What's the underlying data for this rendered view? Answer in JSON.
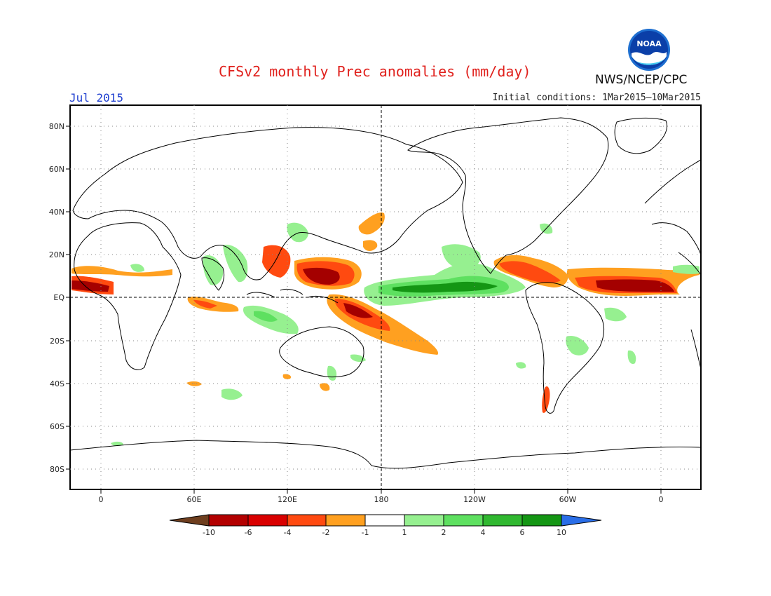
{
  "header": {
    "title": "CFSv2 monthly Prec anomalies (mm/day)",
    "month": "Jul 2015",
    "initial_conditions": "Initial conditions: 1Mar2015–10Mar2015",
    "agency": "NWS/NCEP/CPC",
    "logo_text": "NOAA"
  },
  "map": {
    "lat_labels": [
      "80N",
      "60N",
      "40N",
      "20N",
      "EQ",
      "20S",
      "40S",
      "60S",
      "80S"
    ],
    "lon_labels": [
      "0",
      "60E",
      "120E",
      "180",
      "120W",
      "60W",
      "0"
    ]
  },
  "colorbar": {
    "labels": [
      "-10",
      "-6",
      "-4",
      "-2",
      "-1",
      "1",
      "2",
      "4",
      "6",
      "10"
    ],
    "colors": {
      "below_min": "#6e3e1e",
      "bins": [
        "#b30000",
        "#d90000",
        "#ff4a10",
        "#ffa020",
        "#ffffff",
        "#96f090",
        "#5ee060",
        "#30b830",
        "#149614"
      ],
      "above_max": "#2a6ee8"
    }
  },
  "palette": {
    "dry_strong": "#a40000",
    "dry_mid": "#ff4a10",
    "dry_weak": "#ffa020",
    "wet_weak": "#96f090",
    "wet_mid": "#5ee060",
    "wet_strong": "#149614",
    "title_red": "#e0201c",
    "month_blue": "#2040d0"
  }
}
